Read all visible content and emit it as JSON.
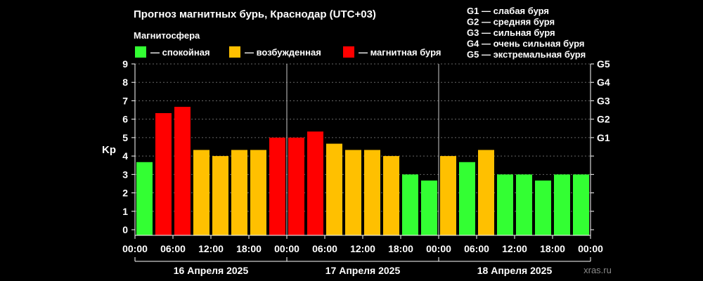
{
  "colors": {
    "calm": "#33ff33",
    "excited": "#ffc000",
    "storm": "#ff0000",
    "background": "#000000",
    "grid": "#666666"
  },
  "watermark": "xras.ru",
  "chart_data": {
    "type": "bar",
    "title": "Прогноз магнитных бурь, Краснодар (UTC+03)",
    "subtitle": "Магнитосфера",
    "legend": [
      {
        "label": "— спокойная",
        "color": "#33ff33"
      },
      {
        "label": "— возбужденная",
        "color": "#ffc000"
      },
      {
        "label": "— магнитная буря",
        "color": "#ff0000"
      }
    ],
    "g_scale_key": [
      "G1 — слабая буря",
      "G2 — средняя буря",
      "G3 — сильная буря",
      "G4 — очень сильная буря",
      "G5 — экстремальная буря"
    ],
    "ylabel": "Kp",
    "ylim": [
      0,
      9
    ],
    "yticks": [
      "0",
      "1",
      "2",
      "3",
      "4",
      "5",
      "6",
      "7",
      "8",
      "9"
    ],
    "right_ticks": [
      {
        "value": 5,
        "label": "G1"
      },
      {
        "value": 6,
        "label": "G2"
      },
      {
        "value": 7,
        "label": "G3"
      },
      {
        "value": 8,
        "label": "G4"
      },
      {
        "value": 9,
        "label": "G5"
      }
    ],
    "xticks": [
      "00:00",
      "06:00",
      "12:00",
      "18:00",
      "00:00",
      "06:00",
      "12:00",
      "18:00",
      "00:00",
      "06:00",
      "12:00",
      "18:00",
      "00:00"
    ],
    "days": [
      "16 Апреля 2025",
      "17 Апреля 2025",
      "18 Апреля 2025"
    ],
    "grid": true,
    "values": [
      3.67,
      6.33,
      6.67,
      4.33,
      4.0,
      4.33,
      4.33,
      5.0,
      5.0,
      5.33,
      4.67,
      4.33,
      4.33,
      4.0,
      3.0,
      2.67,
      4.0,
      3.67,
      4.33,
      3.0,
      3.0,
      2.67,
      3.0,
      3.0
    ],
    "levels": [
      "calm",
      "storm",
      "storm",
      "excited",
      "excited",
      "excited",
      "excited",
      "storm",
      "storm",
      "storm",
      "excited",
      "excited",
      "excited",
      "excited",
      "calm",
      "calm",
      "excited",
      "calm",
      "excited",
      "calm",
      "calm",
      "calm",
      "calm",
      "calm"
    ]
  }
}
